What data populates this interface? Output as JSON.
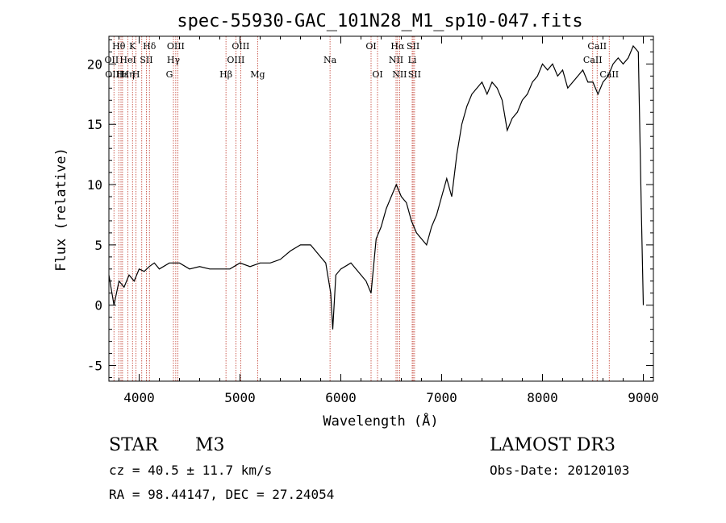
{
  "chart_data": {
    "type": "line",
    "title": "spec-55930-GAC_101N28_M1_sp10-047.fits",
    "xlabel": "Wavelength (Å)",
    "ylabel": "Flux (relative)",
    "xlim": [
      3700,
      9100
    ],
    "ylim": [
      -6.3,
      22.3
    ],
    "xticks": [
      4000,
      5000,
      6000,
      7000,
      8000,
      9000
    ],
    "yticks": [
      -5,
      0,
      5,
      10,
      15,
      20
    ],
    "grid": false,
    "series": [
      {
        "color": "#000000",
        "x": [
          3700,
          3750,
          3800,
          3850,
          3900,
          3950,
          4000,
          4050,
          4100,
          4150,
          4200,
          4300,
          4400,
          4500,
          4600,
          4700,
          4800,
          4900,
          5000,
          5100,
          5200,
          5300,
          5400,
          5500,
          5600,
          5700,
          5800,
          5850,
          5900,
          5920,
          5950,
          6000,
          6100,
          6200,
          6250,
          6300,
          6350,
          6400,
          6450,
          6500,
          6550,
          6600,
          6650,
          6700,
          6750,
          6800,
          6850,
          6900,
          6950,
          7000,
          7050,
          7100,
          7150,
          7200,
          7250,
          7300,
          7350,
          7400,
          7450,
          7500,
          7550,
          7600,
          7650,
          7700,
          7750,
          7800,
          7850,
          7900,
          7950,
          8000,
          8050,
          8100,
          8150,
          8200,
          8250,
          8300,
          8350,
          8400,
          8450,
          8500,
          8550,
          8600,
          8650,
          8700,
          8750,
          8800,
          8850,
          8900,
          8950,
          8980,
          9000
        ],
        "y": [
          2.5,
          0.0,
          2.0,
          1.5,
          2.5,
          2.0,
          3.0,
          2.8,
          3.2,
          3.5,
          3.0,
          3.5,
          3.5,
          3.0,
          3.2,
          3.0,
          3.0,
          3.0,
          3.5,
          3.2,
          3.5,
          3.5,
          3.8,
          4.5,
          5.0,
          5.0,
          4.0,
          3.5,
          1.0,
          -2.0,
          2.5,
          3.0,
          3.5,
          2.5,
          2.0,
          1.0,
          5.5,
          6.5,
          8.0,
          9.0,
          10.0,
          9.0,
          8.5,
          7.0,
          6.0,
          5.5,
          5.0,
          6.5,
          7.5,
          9.0,
          10.5,
          9.0,
          12.5,
          15.0,
          16.5,
          17.5,
          18.0,
          18.5,
          17.5,
          18.5,
          18.0,
          17.0,
          14.5,
          15.5,
          16.0,
          17.0,
          17.5,
          18.5,
          19.0,
          20.0,
          19.5,
          20.0,
          19.0,
          19.5,
          18.0,
          18.5,
          19.0,
          19.5,
          18.5,
          18.5,
          17.5,
          18.5,
          19.0,
          20.0,
          20.5,
          20.0,
          20.5,
          21.5,
          21.0,
          8.0,
          0.0
        ]
      }
    ],
    "line_markers": {
      "color": "#c0392b",
      "wavelengths": [
        3750,
        3798,
        3820,
        3835,
        3889,
        3934,
        3969,
        4026,
        4072,
        4102,
        4340,
        4363,
        4384,
        4861,
        4959,
        5007,
        5175,
        5893,
        6300,
        6364,
        6548,
        6563,
        6583,
        6708,
        6717,
        6731,
        8498,
        8542,
        8662
      ],
      "labels": [
        {
          "text": "Hθ",
          "wl": 3798,
          "row": 0
        },
        {
          "text": "K",
          "wl": 3934,
          "row": 0
        },
        {
          "text": "Hδ",
          "wl": 4102,
          "row": 0
        },
        {
          "text": "OIII",
          "wl": 4363,
          "row": 0
        },
        {
          "text": "OIII",
          "wl": 5007,
          "row": 0
        },
        {
          "text": "OI",
          "wl": 6300,
          "row": 0
        },
        {
          "text": "Hα",
          "wl": 6563,
          "row": 0
        },
        {
          "text": "SII",
          "wl": 6717,
          "row": 0
        },
        {
          "text": "CaII",
          "wl": 8542,
          "row": 0
        },
        {
          "text": "OII",
          "wl": 3727,
          "row": 1
        },
        {
          "text": "HeI",
          "wl": 3889,
          "row": 1
        },
        {
          "text": "SII",
          "wl": 4072,
          "row": 1
        },
        {
          "text": "Hγ",
          "wl": 4340,
          "row": 1
        },
        {
          "text": "OIII",
          "wl": 4959,
          "row": 1
        },
        {
          "text": "NII",
          "wl": 6548,
          "row": 1
        },
        {
          "text": "Li",
          "wl": 6708,
          "row": 1
        },
        {
          "text": "CaII",
          "wl": 8498,
          "row": 1
        },
        {
          "text": "OIII",
          "wl": 3750,
          "row": 2
        },
        {
          "text": "Hε",
          "wl": 3835,
          "row": 2
        },
        {
          "text": "Hη",
          "wl": 3889,
          "row": 2
        },
        {
          "text": "H",
          "wl": 3969,
          "row": 2
        },
        {
          "text": "G",
          "wl": 4300,
          "row": 2
        },
        {
          "text": "Hβ",
          "wl": 4861,
          "row": 2
        },
        {
          "text": "Mg",
          "wl": 5175,
          "row": 2
        },
        {
          "text": "Na",
          "wl": 5893,
          "row": 1
        },
        {
          "text": "OI",
          "wl": 6364,
          "row": 2
        },
        {
          "text": "NII",
          "wl": 6583,
          "row": 2
        },
        {
          "text": "SII",
          "wl": 6731,
          "row": 2
        },
        {
          "text": "CaII",
          "wl": 8662,
          "row": 2
        }
      ]
    }
  },
  "info": {
    "object_type": "STAR",
    "subclass": "M3",
    "survey": "LAMOST DR3",
    "redshift": "cz = 40.5 ± 11.7 km/s",
    "obs_date": "Obs-Date: 20120103",
    "coords": "RA =  98.44147, DEC =  27.24054"
  }
}
